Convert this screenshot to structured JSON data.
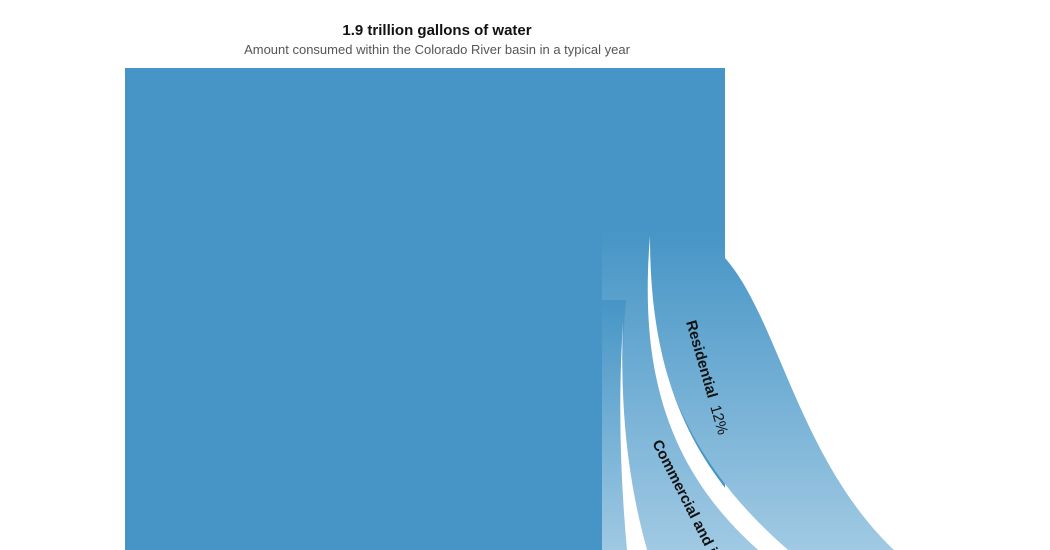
{
  "chart_data": {
    "type": "sankey",
    "title": "1.9 trillion gallons of water",
    "subtitle": "Amount consumed within the Colorado River basin in a typical year",
    "source": {
      "total": "1.9 trillion gallons"
    },
    "flows": [
      {
        "label": "Residential",
        "percent_label": "12%",
        "value": 12,
        "color": "#4695c6"
      },
      {
        "label": "Commercial and in",
        "percent_label": "",
        "value": null,
        "color": "#4695c6"
      }
    ],
    "colors": {
      "main": "#4695c6",
      "fade": "#a3cbe4"
    }
  }
}
